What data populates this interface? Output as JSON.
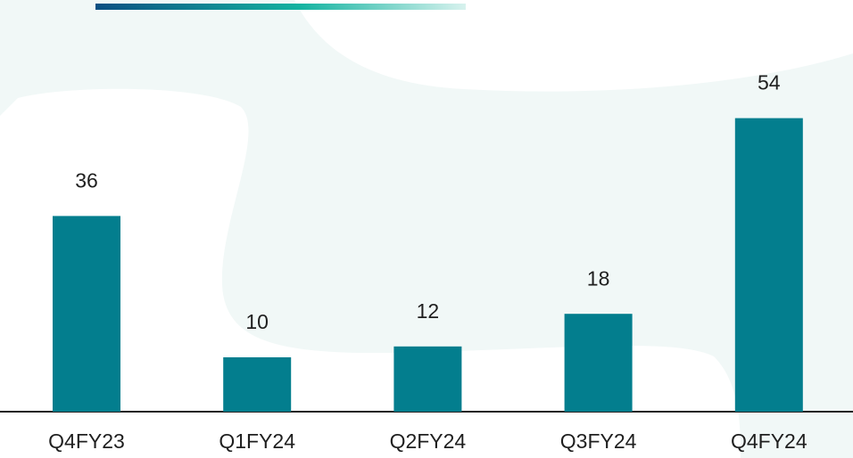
{
  "chart_data": {
    "type": "bar",
    "categories": [
      "Q4FY23",
      "Q1FY24",
      "Q2FY24",
      "Q3FY24",
      "Q4FY24"
    ],
    "values": [
      36,
      10,
      12,
      18,
      54
    ],
    "color": "#037e8e"
  }
}
